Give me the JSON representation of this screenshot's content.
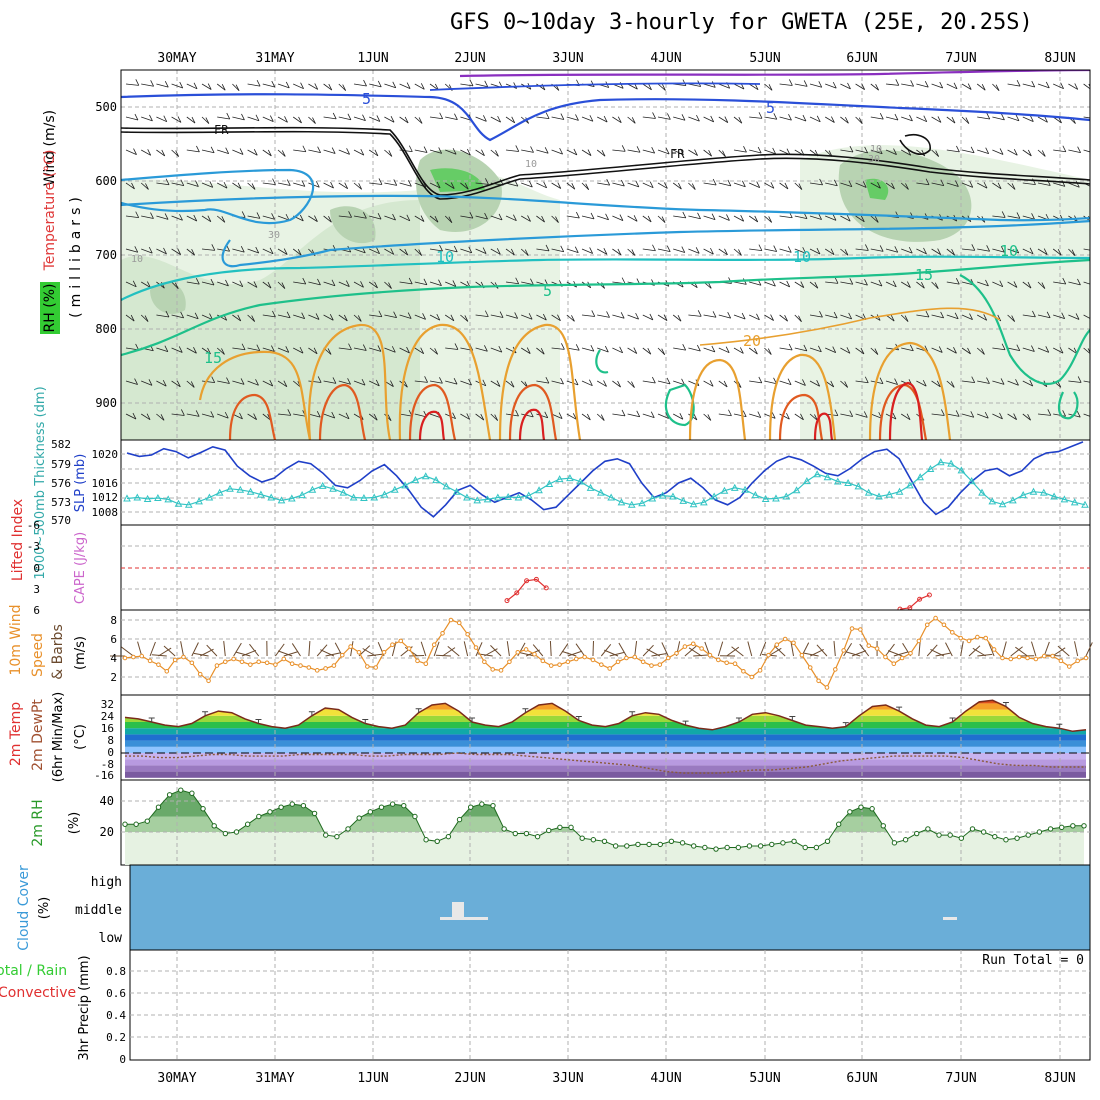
{
  "title": "GFS 0~10day 3-hourly for GWETA (25E, 20.25S)",
  "dates": [
    "30MAY",
    "31MAY",
    "1JUN",
    "2JUN",
    "3JUN",
    "4JUN",
    "5JUN",
    "6JUN",
    "7JUN",
    "8JUN"
  ],
  "colors": {
    "grid": "#b0b0b0",
    "rh_green": "#33cc33",
    "slp": "#1f3fc8",
    "thickness": "#33c4c4",
    "lifted_index": "#e03030",
    "cape": "#cc66cc",
    "wind_speed": "#e8902a",
    "barb": "#6b4a2e",
    "rh2m": "#3a9a3a",
    "cloud": "#6aaed8",
    "rain": "#33cc33",
    "convective": "#e03030"
  },
  "panels": {
    "upper_air": {
      "y_label_wind": "Wind (m/s)",
      "y_label_temp": "Temperature (°C)",
      "y_label_rh": "RH (%)",
      "y_label_pressure": "(millibars)",
      "ticks": [
        "500",
        "600",
        "700",
        "800",
        "900"
      ],
      "contour_labels": [
        "5",
        "5",
        "FR",
        "FR",
        "10",
        "10",
        "5",
        "10",
        "15",
        "15",
        "20",
        "10",
        "30",
        "30",
        "10",
        "10"
      ]
    },
    "slp_thickness": {
      "y_label_left": "1000~500mb Thickness (dm)",
      "y_label_right": "SLP (mb)",
      "ticks_thickness": [
        "582",
        "579",
        "576",
        "573",
        "570"
      ],
      "ticks_slp": [
        "1020",
        "1016",
        "1012",
        "1008"
      ]
    },
    "stability": {
      "y_label_li": "Lifted Index",
      "y_label_cape": "CAPE (J/kg)",
      "ticks": [
        "-6",
        "-3",
        "0",
        "3",
        "6"
      ]
    },
    "wind10m": {
      "y_label_a": "10m Wind",
      "y_label_b": "Speed",
      "y_label_c": "& Barbs",
      "y_label_unit": "(m/s)",
      "ticks": [
        "8",
        "6",
        "4",
        "2"
      ]
    },
    "temp2m": {
      "y_label_a": "2m Temp",
      "y_label_b": "2m DewPt",
      "y_label_c": "(6hr Min/Max)",
      "y_label_unit": "(°C)",
      "ticks": [
        "32",
        "24",
        "16",
        "8",
        "0",
        "-8",
        "-16"
      ]
    },
    "rh2m": {
      "y_label": "2m RH",
      "y_label_unit": "(%)",
      "ticks": [
        "40",
        "20"
      ]
    },
    "cloud": {
      "y_label": "Cloud Cover",
      "y_label_unit": "(%)",
      "levels": [
        "high",
        "middle",
        "low"
      ]
    },
    "precip": {
      "y_label_a": "Total / Rain",
      "y_label_b": "Convective",
      "y_label_c": "3hr Precip (mm)",
      "ticks": [
        "0.8",
        "0.6",
        "0.4",
        "0.2",
        "0"
      ],
      "run_total": "Run Total = 0"
    }
  },
  "chart_data": [
    {
      "type": "line",
      "title": "1000~500mb Thickness (dm) / SLP (mb)",
      "series": [
        {
          "name": "SLP (mb)",
          "y": [
            1020.2,
            1019.5,
            1019.8,
            1021.1,
            1020.5,
            1019.2,
            1020.3,
            1021.5,
            1020.8,
            1017.5,
            1015.5,
            1014.2,
            1015.0,
            1017.0,
            1018.5,
            1018.0,
            1016.0,
            1013.5,
            1013.0,
            1014.5,
            1016.5,
            1017.8,
            1015.5,
            1012.5,
            1009.0,
            1007.0,
            1009.5,
            1012.5,
            1013.5,
            1011.5,
            1010.0,
            1011.0,
            1012.0,
            1010.5,
            1008.5,
            1009.0,
            1011.5,
            1014.0,
            1016.5,
            1018.5,
            1019.0,
            1018.0,
            1014.0,
            1011.0,
            1012.0,
            1014.0,
            1015.0,
            1013.0,
            1010.5,
            1009.5,
            1011.0,
            1014.0,
            1016.5,
            1018.5,
            1019.5,
            1018.8,
            1017.5,
            1016.0,
            1015.5,
            1017.0,
            1019.0,
            1020.5,
            1021.0,
            1019.0,
            1014.5,
            1010.0,
            1007.5,
            1009.0,
            1012.0,
            1014.5,
            1016.5,
            1017.0,
            1015.5,
            1016.5,
            1019.0,
            1020.2,
            1020.5,
            1021.5,
            1022.5
          ]
        },
        {
          "name": "1000~500mb Thickness (dm)",
          "y": [
            572.8,
            573.0,
            572.7,
            572.9,
            572.6,
            571.7,
            571.5,
            572.2,
            573.0,
            574.0,
            574.8,
            574.6,
            574.2,
            573.6,
            573.0,
            572.4,
            572.8,
            573.5,
            574.6,
            575.4,
            574.8,
            574.0,
            573.0,
            572.9,
            573.0,
            573.6,
            574.6,
            575.5,
            576.6,
            577.4,
            576.6,
            575.3,
            574.2,
            573.0,
            572.4,
            572.6,
            573.0,
            573.1,
            573.0,
            573.4,
            574.5,
            575.8,
            576.8,
            577.0,
            576.3,
            575.0,
            574.0,
            573.0,
            572.0,
            571.5,
            571.8,
            572.8,
            573.4,
            573.2,
            572.3,
            571.6,
            572.0,
            573.2,
            574.4,
            575.0,
            574.6,
            573.5,
            572.7,
            572.8,
            573.2,
            574.5,
            576.4,
            577.8,
            577.2,
            576.3,
            576.0,
            575.3,
            574.0,
            573.2,
            573.6,
            574.2,
            575.5,
            577.2,
            578.9,
            580.3,
            580.0,
            578.6,
            576.4,
            574.0,
            572.2,
            571.6,
            572.4,
            573.5,
            574.2,
            574.0,
            573.2,
            572.6,
            572.0,
            571.5
          ]
        }
      ]
    },
    {
      "type": "line",
      "title": "Lifted Index / CAPE",
      "series": [
        {
          "name": "Lifted Index",
          "segments": [
            [
              4.6,
              3.5,
              1.8,
              1.6,
              2.8
            ],
            [
              5.8,
              5.6,
              4.4,
              3.8
            ]
          ]
        }
      ]
    },
    {
      "type": "line",
      "title": "10m Wind Speed (m/s)",
      "ylim": [
        0.5,
        9
      ],
      "series": [
        {
          "name": "10m Wind Speed",
          "y": [
            4.0,
            4.1,
            4.2,
            3.7,
            3.3,
            2.6,
            3.8,
            4.1,
            3.5,
            2.3,
            1.6,
            3.2,
            3.6,
            3.9,
            3.6,
            3.3,
            3.6,
            3.5,
            3.3,
            3.9,
            3.4,
            3.2,
            3.0,
            2.7,
            2.9,
            3.2,
            4.3,
            5.2,
            4.6,
            3.1,
            3.0,
            4.6,
            5.4,
            5.8,
            5.0,
            3.7,
            3.4,
            5.4,
            6.6,
            8.0,
            7.7,
            6.5,
            5.1,
            3.6,
            2.8,
            2.7,
            3.6,
            4.6,
            4.9,
            4.4,
            3.7,
            3.2,
            3.3,
            3.6,
            3.9,
            4.1,
            3.8,
            3.3,
            2.9,
            3.6,
            4.0,
            4.1,
            3.6,
            3.2,
            3.3,
            4.0,
            4.5,
            5.2,
            5.5,
            5.0,
            4.3,
            3.8,
            3.5,
            3.4,
            2.6,
            2.0,
            2.7,
            4.3,
            5.4,
            6.0,
            5.6,
            4.3,
            3.0,
            1.6,
            0.9,
            2.8,
            4.8,
            7.1,
            7.0,
            5.3,
            5.0,
            4.1,
            3.4,
            4.0,
            4.5,
            5.8,
            7.5,
            8.2,
            7.5,
            6.7,
            6.1,
            5.8,
            6.2,
            6.1,
            4.9,
            4.0,
            3.9,
            4.1,
            4.0,
            3.9,
            4.2,
            4.2,
            3.7,
            3.1,
            3.7,
            4.0
          ]
        }
      ]
    },
    {
      "type": "area",
      "title": "2m Temp (°C)",
      "ylim": [
        -16,
        36
      ],
      "series": [
        {
          "name": "2m Temp",
          "y": [
            23,
            22,
            20,
            18,
            17,
            19,
            24,
            27,
            26,
            22,
            19,
            17,
            16,
            18,
            24,
            29,
            28,
            23,
            19,
            17,
            16,
            18,
            26,
            31,
            32,
            27,
            20,
            18,
            17,
            20,
            26,
            31,
            32,
            27,
            21,
            18,
            17,
            19,
            24,
            26,
            25,
            21,
            18,
            16,
            15,
            17,
            20,
            25,
            26,
            24,
            21,
            18,
            17,
            16,
            17,
            24,
            30,
            31,
            27,
            22,
            18,
            17,
            20,
            27,
            33,
            34,
            30,
            23,
            19,
            17,
            16,
            14,
            15
          ]
        },
        {
          "name": "2m DewPt",
          "y": [
            -2,
            -2,
            -3,
            -3,
            -2,
            -1,
            -1,
            -2,
            -2,
            -2,
            -1,
            -1,
            -1,
            -1,
            -2,
            -2,
            -1,
            -1,
            -1,
            0,
            -1,
            -1,
            -1,
            -2,
            -3,
            -4,
            -5,
            -6,
            -7,
            -8,
            -10,
            -12,
            -13,
            -13,
            -13,
            -12,
            -11,
            -11,
            -10,
            -9,
            -7,
            -5,
            -4,
            -3,
            -2,
            -2,
            -2,
            -2,
            -3,
            -5,
            -7,
            -8,
            -8,
            -9,
            -9,
            -9
          ]
        }
      ]
    },
    {
      "type": "area",
      "title": "2m RH (%)",
      "ylim": [
        5,
        50
      ],
      "series": [
        {
          "name": "2m RH",
          "y": [
            25,
            25,
            27,
            36,
            44,
            47,
            45,
            35,
            24,
            19,
            20,
            25,
            30,
            33,
            36,
            38,
            37,
            32,
            18,
            17,
            22,
            29,
            33,
            36,
            38,
            37,
            30,
            15,
            14,
            17,
            28,
            36,
            38,
            37,
            22,
            19,
            19,
            17,
            21,
            23,
            23,
            16,
            15,
            14,
            11,
            11,
            12,
            12,
            12,
            14,
            13,
            11,
            10,
            9,
            10,
            10,
            11,
            11,
            12,
            13,
            14,
            10,
            10,
            14,
            25,
            33,
            36,
            35,
            24,
            13,
            15,
            19,
            22,
            18,
            18,
            16,
            22,
            20,
            17,
            15,
            16,
            18,
            20,
            22,
            23,
            24,
            24
          ]
        }
      ]
    },
    {
      "type": "bar",
      "title": "3hr Precip (mm)",
      "ylim": [
        0,
        1
      ],
      "series": [
        {
          "name": "Total / Rain",
          "values": []
        },
        {
          "name": "Convective",
          "values": []
        }
      ]
    }
  ]
}
